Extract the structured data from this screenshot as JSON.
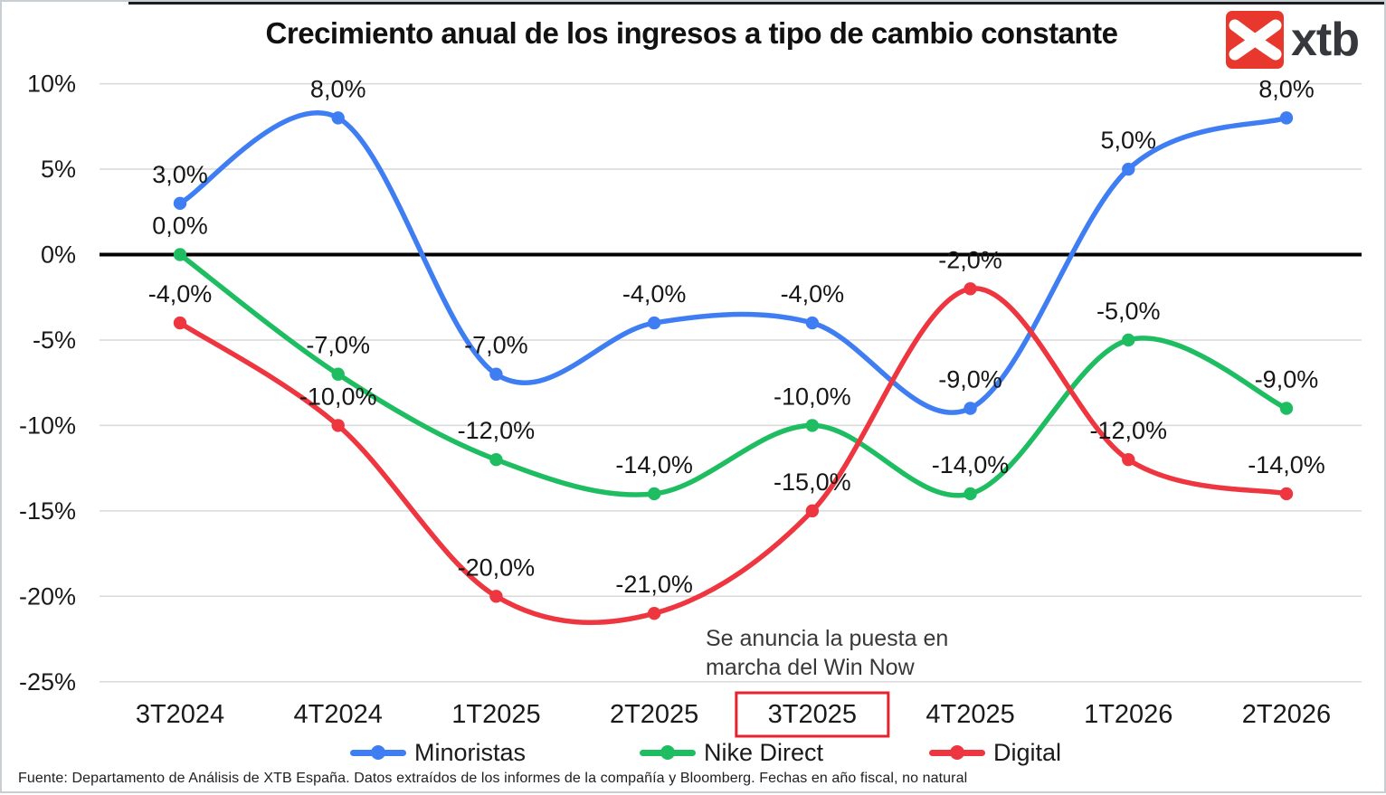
{
  "header": {
    "title": "Crecimiento anual de los ingresos a tipo de cambio constante"
  },
  "logo": {
    "text": "xtb",
    "square_color": "#e8382d",
    "text_color": "#36383e"
  },
  "annotation": {
    "lines": [
      "Se anuncia la puesta en",
      "marcha del Win Now"
    ]
  },
  "footer": {
    "source": "Fuente: Departamento de Análisis de XTB España. Datos extraídos de los informes de la compañía y Bloomberg. Fechas en año fiscal, no natural"
  },
  "colors": {
    "grid": "#d9d9d9",
    "zero_axis": "#000000",
    "highlight_box": "#e8232e",
    "tick_text": "#1a1a1a",
    "label_text": "#161616"
  },
  "chart_data": {
    "type": "line",
    "title": "Crecimiento anual de los ingresos a tipo de cambio constante",
    "categories": [
      "3T2024",
      "4T2024",
      "1T2025",
      "2T2025",
      "3T2025",
      "4T2025",
      "1T2026",
      "2T2026"
    ],
    "highlighted_category": "3T2025",
    "xlabel": "",
    "ylabel": "",
    "ylim": [
      -25,
      10
    ],
    "yticks": [
      10,
      5,
      0,
      -5,
      -10,
      -15,
      -20,
      -25
    ],
    "ytick_labels": [
      "10%",
      "5%",
      "0%",
      "-5%",
      "-10%",
      "-15%",
      "-20%",
      "-25%"
    ],
    "grid": true,
    "legend_position": "bottom",
    "series": [
      {
        "name": "Minoristas",
        "color": "#3e7df2",
        "values": [
          3.0,
          8.0,
          -7.0,
          -4.0,
          -4.0,
          -9.0,
          5.0,
          8.0
        ],
        "labels": [
          "3,0%",
          "8,0%",
          "-7,0%",
          "-4,0%",
          "-4,0%",
          "-9,0%",
          "5,0%",
          "8,0%"
        ]
      },
      {
        "name": "Nike Direct",
        "color": "#1fbd62",
        "values": [
          0.0,
          -7.0,
          -12.0,
          -14.0,
          -10.0,
          -14.0,
          -5.0,
          -9.0
        ],
        "labels": [
          "0,0%",
          "-7,0%",
          "-12,0%",
          "-14,0%",
          "-10,0%",
          "-14,0%",
          "-5,0%",
          "-9,0%"
        ]
      },
      {
        "name": "Digital",
        "color": "#ee3640",
        "values": [
          -4.0,
          -10.0,
          -20.0,
          -21.0,
          -15.0,
          -2.0,
          -12.0,
          -14.0
        ],
        "labels": [
          "-4,0%",
          "-10,0%",
          "-20,0%",
          "-21,0%",
          "-15,0%",
          "-2,0%",
          "-12,0%",
          "-14,0%"
        ]
      }
    ],
    "annotation": {
      "text": "Se anuncia la puesta en marcha del Win Now",
      "x_category": "3T2025"
    }
  }
}
